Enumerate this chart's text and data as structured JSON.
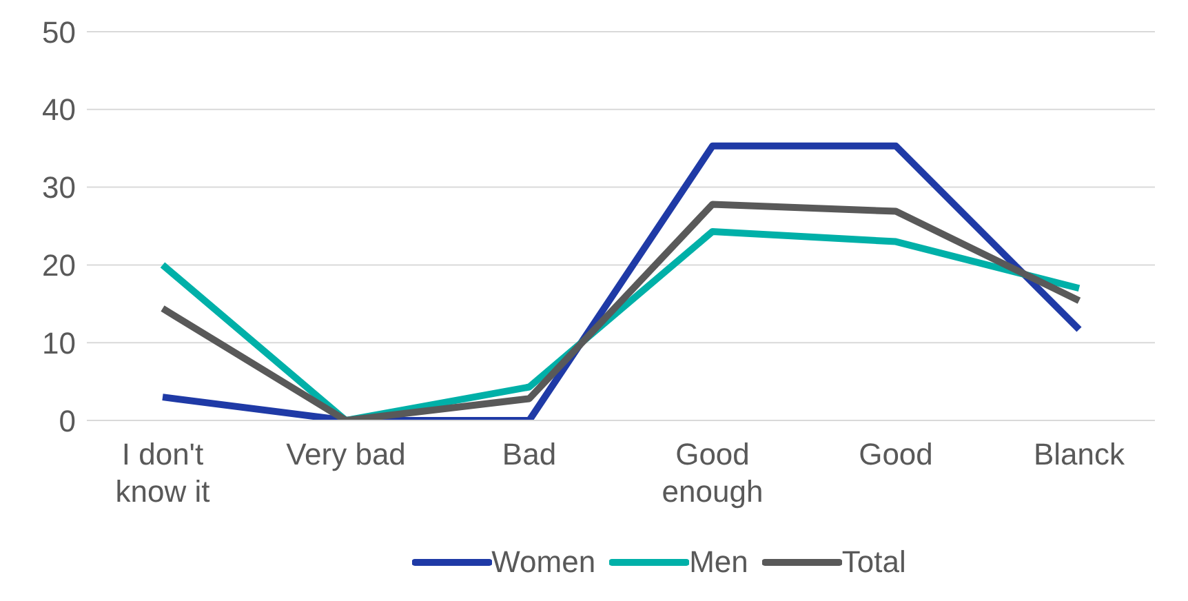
{
  "chart_data": {
    "type": "line",
    "categories": [
      "I don't know it",
      "Very bad",
      "Bad",
      "Good enough",
      "Good",
      "Blanck"
    ],
    "series": [
      {
        "name": "Women",
        "color": "#1f3aa6",
        "values": [
          3,
          0,
          0,
          35.3,
          35.3,
          11.7
        ]
      },
      {
        "name": "Men",
        "color": "#00b0a8",
        "values": [
          20,
          0,
          4.3,
          24.3,
          23,
          17
        ]
      },
      {
        "name": "Total",
        "color": "#595959",
        "values": [
          14.4,
          0,
          2.8,
          27.8,
          26.9,
          15.4
        ]
      }
    ],
    "ylim": [
      0,
      50
    ],
    "yticks": [
      0,
      10,
      20,
      30,
      40,
      50
    ],
    "grid": "y",
    "legend": "bottom",
    "marker": "none",
    "line_style": "solid"
  }
}
